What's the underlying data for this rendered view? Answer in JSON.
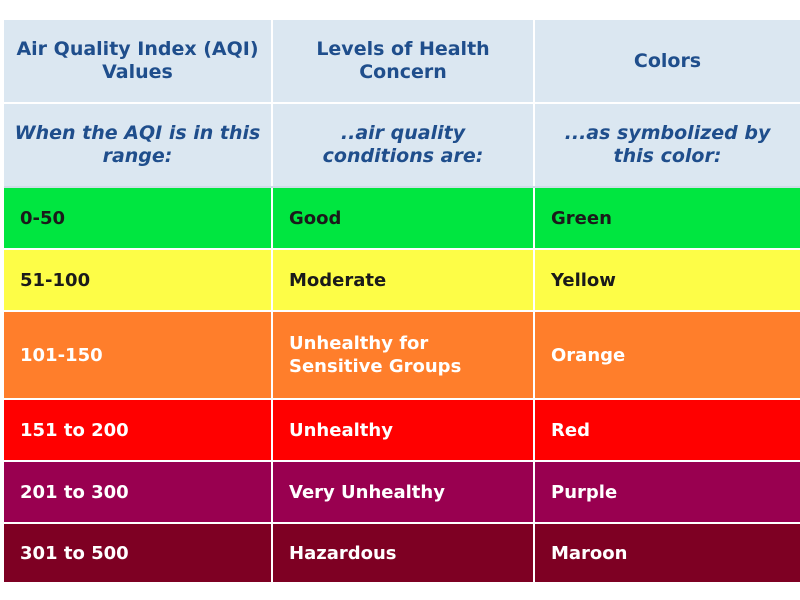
{
  "header": {
    "columns": [
      "Air Quality Index (AQI) Values",
      "Levels of Health Concern",
      "Colors"
    ]
  },
  "subheader": {
    "columns": [
      "When the AQI is in this range:",
      "..air quality conditions are:",
      "...as symbolized by this color:"
    ]
  },
  "rows": [
    {
      "range": "0-50",
      "level": "Good",
      "color_name": "Green",
      "bg": "#00e640",
      "fg": "#1a1a1a"
    },
    {
      "range": "51-100",
      "level": "Moderate",
      "color_name": "Yellow",
      "bg": "#fdfd47",
      "fg": "#1a1a1a"
    },
    {
      "range": "101-150",
      "level": "Unhealthy for Sensitive Groups",
      "color_name": "Orange",
      "bg": "#ff7e2b",
      "fg": "#ffffff"
    },
    {
      "range": "151 to 200",
      "level": "Unhealthy",
      "color_name": "Red",
      "bg": "#ff0000",
      "fg": "#ffffff"
    },
    {
      "range": "201 to 300",
      "level": "Very Unhealthy",
      "color_name": "Purple",
      "bg": "#990050",
      "fg": "#ffffff"
    },
    {
      "range": "301 to 500",
      "level": "Hazardous",
      "color_name": "Maroon",
      "bg": "#7e0023",
      "fg": "#ffffff"
    }
  ]
}
